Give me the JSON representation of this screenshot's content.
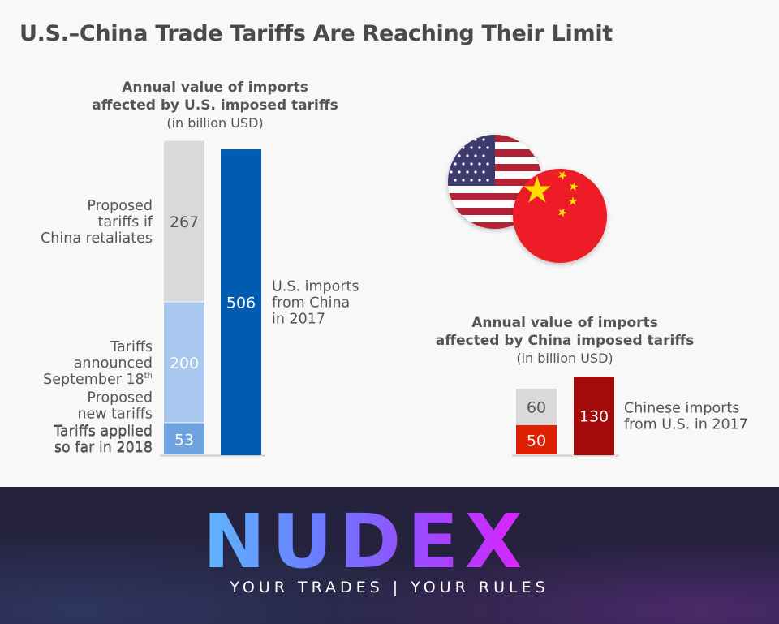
{
  "title": "U.S.–China Trade Tariffs Are Reaching Their Limit",
  "chart_data": [
    {
      "type": "bar",
      "stacked": true,
      "title": [
        "Annual value of imports",
        "affected by U.S. imposed tariffs",
        "(in billion USD)"
      ],
      "bars": [
        {
          "segments": [
            {
              "label": "Tariffs applied so far in 2018",
              "value": 53,
              "color": "#6fa3e0"
            },
            {
              "label": "Tariffs announced September 18th",
              "value": 200,
              "color": "#a9c8f0"
            },
            {
              "label": "Proposed tariffs if China retaliates",
              "value": 267,
              "color": "#d9d9d9"
            }
          ]
        },
        {
          "segments": [
            {
              "label": "U.S. imports from China in 2017",
              "value": 506,
              "color": "#005bb3"
            }
          ]
        }
      ]
    },
    {
      "type": "bar",
      "stacked": true,
      "title": [
        "Annual value of imports",
        "affected by China imposed tariffs",
        "(in billion USD)"
      ],
      "bars": [
        {
          "segments": [
            {
              "label": "Tariffs applied so far in 2018",
              "value": 50,
              "color": "#dd2000"
            },
            {
              "label": "Proposed new tariffs",
              "value": 60,
              "color": "#d9d9d9"
            }
          ]
        },
        {
          "segments": [
            {
              "label": "Chinese imports from U.S. in 2017",
              "value": 130,
              "color": "#a50a0a"
            }
          ]
        }
      ]
    }
  ],
  "banner": {
    "logo": "NUDEX",
    "tagline": "YOUR TRADES | YOUR RULES",
    "background": "#25223d"
  },
  "icons": [
    "us-flag-icon",
    "china-flag-icon"
  ]
}
